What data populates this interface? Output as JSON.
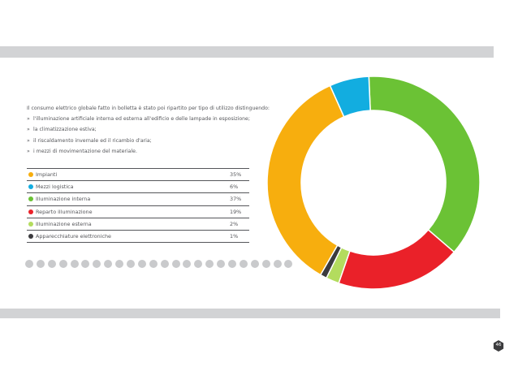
{
  "intro": {
    "lead": "Il consumo elettrico globale fatto in bolletta è stato poi ripartito per tipo di utilizzo distinguendo:",
    "items": [
      "l'illuminazione artificiale interna ed esterna all'edificio e delle lampade in esposizione;",
      "la climatizzazione estiva;",
      "il riscaldamento invernale ed il ricambio d'aria;",
      "i mezzi di movimentazione del materiale."
    ],
    "bullet": "»"
  },
  "chart_data": {
    "type": "pie",
    "donut": true,
    "title": "",
    "slices": [
      {
        "label": "Impianti",
        "value": 35,
        "value_label": "35%",
        "color": "#f7ae0e"
      },
      {
        "label": "Mezzi logistica",
        "value": 6,
        "value_label": "6%",
        "color": "#12ade0"
      },
      {
        "label": "Illuminazione interna",
        "value": 37,
        "value_label": "37%",
        "color": "#6bc235"
      },
      {
        "label": "Reparto illuminazione",
        "value": 19,
        "value_label": "19%",
        "color": "#ea2129"
      },
      {
        "label": "Illuminazione esterna",
        "value": 2,
        "value_label": "2%",
        "color": "#b3dc5e"
      },
      {
        "label": "Apparecchiature elettroniche",
        "value": 1,
        "value_label": "1%",
        "color": "#3b3b3e"
      }
    ],
    "draw_order": [
      2,
      3,
      4,
      5,
      0,
      1
    ],
    "start_angle_deg": -2.5,
    "legend_position": "left"
  },
  "page": {
    "number": "46",
    "badge_color": "#3c3c3e"
  },
  "colors": {
    "band": "#d2d3d5",
    "dots": "#c9cacc",
    "text": "#55565a"
  }
}
